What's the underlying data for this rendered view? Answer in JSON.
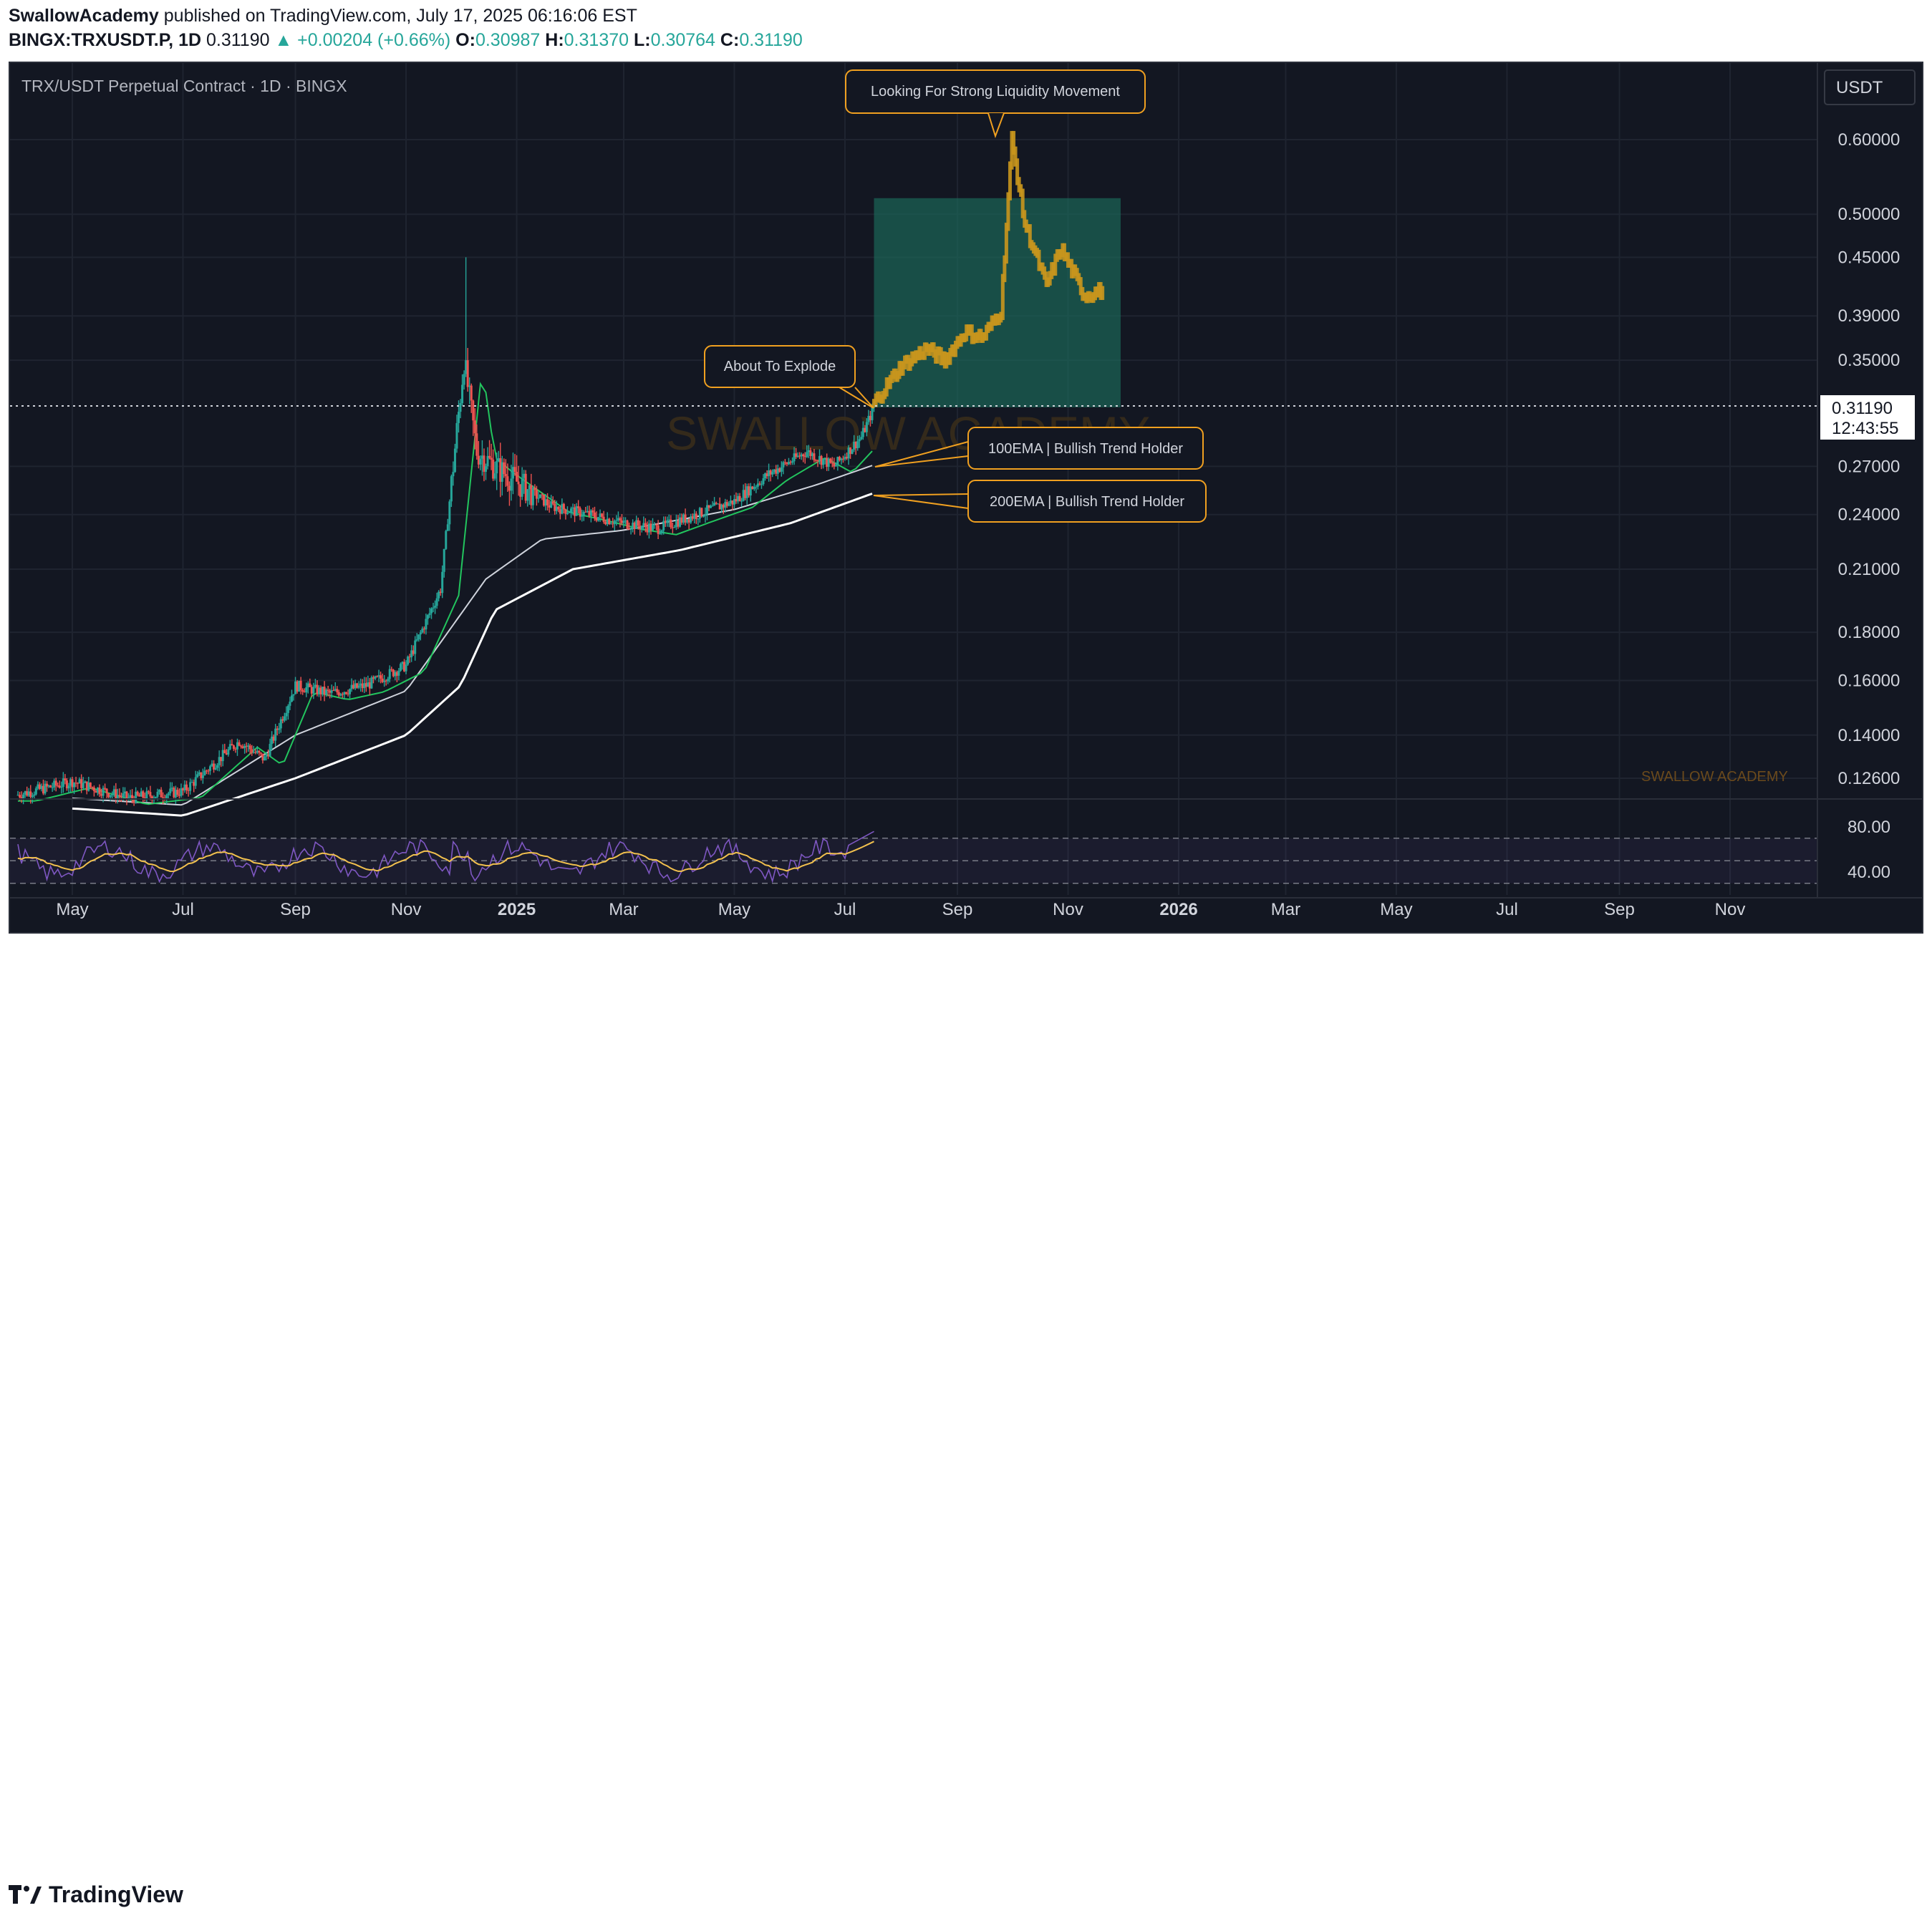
{
  "header": {
    "author": "SwallowAcademy",
    "published": "published on TradingView.com, July 17, 2025 06:16:06 EST",
    "symbol": "BINGX:TRXUSDT.P, 1D",
    "last": "0.31190",
    "change": "▲ +0.00204 (+0.66%)",
    "o_label": "O:",
    "o_value": "0.30987",
    "h_label": "H:",
    "h_value": "0.31370",
    "l_label": "L:",
    "l_value": "0.30764",
    "c_label": "C:",
    "c_value": "0.31190"
  },
  "chart": {
    "title": "TRX/USDT Perpetual Contract · 1D · BINGX",
    "currency_button": "USDT",
    "price_tag": "0.31190",
    "countdown": "12:43:55",
    "watermark_center": "SWALLOW ACADEMY",
    "watermark_corner": "SWALLOW ACADEMY",
    "annotations": {
      "liquidity": "Looking For Strong Liquidity Movement",
      "explode": "About To Explode",
      "ema100": "100EMA | Bullish Trend Holder",
      "ema200": "200EMA | Bullish Trend Holder"
    },
    "colors": {
      "background": "#131722",
      "up": "#26a69a",
      "down": "#ef5350",
      "projection": "#c9961d",
      "projection_box": "#1c6b5c",
      "ema_fast": "#22c55e",
      "ema_red": "#ef5350",
      "ema100": "#cfd3dc",
      "ema200": "#ffffff",
      "rsi": "#7e57c2",
      "rsi_ma": "#f2c14e",
      "annotation_border": "#f0a020"
    }
  },
  "footer": {
    "logo": "TradingView"
  },
  "chart_data": {
    "type": "line",
    "title": "TRX/USDT Perpetual Contract · 1D · BINGX",
    "y_scale": "log",
    "y_ticks": [
      0.126,
      0.14,
      0.16,
      0.18,
      0.21,
      0.24,
      0.27,
      0.35,
      0.39,
      0.45,
      0.5,
      0.6
    ],
    "y_tick_labels": [
      "0.12600",
      "0.14000",
      "0.16000",
      "0.18000",
      "0.21000",
      "0.24000",
      "0.27000",
      "0.35000",
      "0.39000",
      "0.45000",
      "0.50000",
      "0.60000"
    ],
    "x_tick_labels": [
      "May",
      "Jul",
      "Sep",
      "Nov",
      "2025",
      "Mar",
      "May",
      "Jul",
      "Sep",
      "Nov",
      "2026",
      "Mar",
      "May",
      "Jul",
      "Sep",
      "Nov"
    ],
    "x_tick_dates": [
      "2024-05-01",
      "2024-07-01",
      "2024-09-01",
      "2024-11-01",
      "2025-01-01",
      "2025-03-01",
      "2025-05-01",
      "2025-07-01",
      "2025-09-01",
      "2025-11-01",
      "2026-01-01",
      "2026-03-01",
      "2026-05-01",
      "2026-07-01",
      "2026-09-01",
      "2026-11-01"
    ],
    "x_range": [
      "2024-04-01",
      "2026-12-20"
    ],
    "last_price": 0.3119,
    "series": [
      {
        "name": "",
        "x": [
          "2024-04-01",
          "2024-05-01",
          "2024-06-01",
          "2024-07-01",
          "2024-08-01",
          "2024-08-15",
          "2024-09-01",
          "2024-09-20",
          "2024-10-10",
          "2024-11-01",
          "2024-11-20",
          "2024-12-03",
          "2024-12-10",
          "2024-12-20",
          "2025-01-01",
          "2025-01-20",
          "2025-02-10",
          "2025-03-01",
          "2025-03-20",
          "2025-04-10",
          "2025-05-01",
          "2025-05-20",
          "2025-06-10",
          "2025-06-25",
          "2025-07-10",
          "2025-07-17"
        ],
        "y": [
          0.121,
          0.125,
          0.12,
          0.122,
          0.138,
          0.132,
          0.158,
          0.155,
          0.158,
          0.166,
          0.2,
          0.35,
          0.28,
          0.27,
          0.26,
          0.245,
          0.24,
          0.235,
          0.232,
          0.24,
          0.248,
          0.265,
          0.28,
          0.27,
          0.29,
          0.3119
        ]
      },
      {
        "name": "100EMA | Bullish Trend Holder",
        "x": [
          "2024-05-01",
          "2024-07-01",
          "2024-09-01",
          "2024-11-01",
          "2024-12-15",
          "2025-01-15",
          "2025-03-01",
          "2025-05-01",
          "2025-06-15",
          "2025-07-17"
        ],
        "y": [
          0.12,
          0.118,
          0.14,
          0.156,
          0.205,
          0.226,
          0.231,
          0.243,
          0.258,
          0.271
        ]
      },
      {
        "name": "200EMA | Bullish Trend Holder",
        "x": [
          "2024-05-01",
          "2024-07-01",
          "2024-09-01",
          "2024-11-01",
          "2024-12-01",
          "2024-12-20",
          "2025-02-01",
          "2025-04-01",
          "2025-06-01",
          "2025-07-17"
        ],
        "y": [
          0.117,
          0.115,
          0.126,
          0.14,
          0.158,
          0.19,
          0.21,
          0.22,
          0.235,
          0.253
        ]
      },
      {
        "name": "",
        "x": [
          "2025-07-17",
          "2025-08-01",
          "2025-08-15",
          "2025-08-25",
          "2025-09-05",
          "2025-09-15",
          "2025-09-25",
          "2025-10-01",
          "2025-10-08",
          "2025-10-20",
          "2025-10-28",
          "2025-11-10",
          "2025-11-20"
        ],
        "y": [
          0.315,
          0.345,
          0.36,
          0.35,
          0.375,
          0.37,
          0.395,
          0.6,
          0.49,
          0.42,
          0.46,
          0.41,
          0.415
        ]
      }
    ],
    "rsi": {
      "y_ticks": [
        40,
        80
      ],
      "y_tick_labels": [
        "40.00",
        "80.00"
      ],
      "bands": [
        30,
        50,
        70
      ]
    },
    "projection_box": {
      "x": [
        "2025-07-17",
        "2025-11-30"
      ],
      "y": [
        0.3119,
        0.52
      ]
    },
    "annotations": [
      "Looking For Strong Liquidity Movement",
      "About To Explode",
      "100EMA | Bullish Trend Holder",
      "200EMA | Bullish Trend Holder"
    ],
    "grid": true
  }
}
